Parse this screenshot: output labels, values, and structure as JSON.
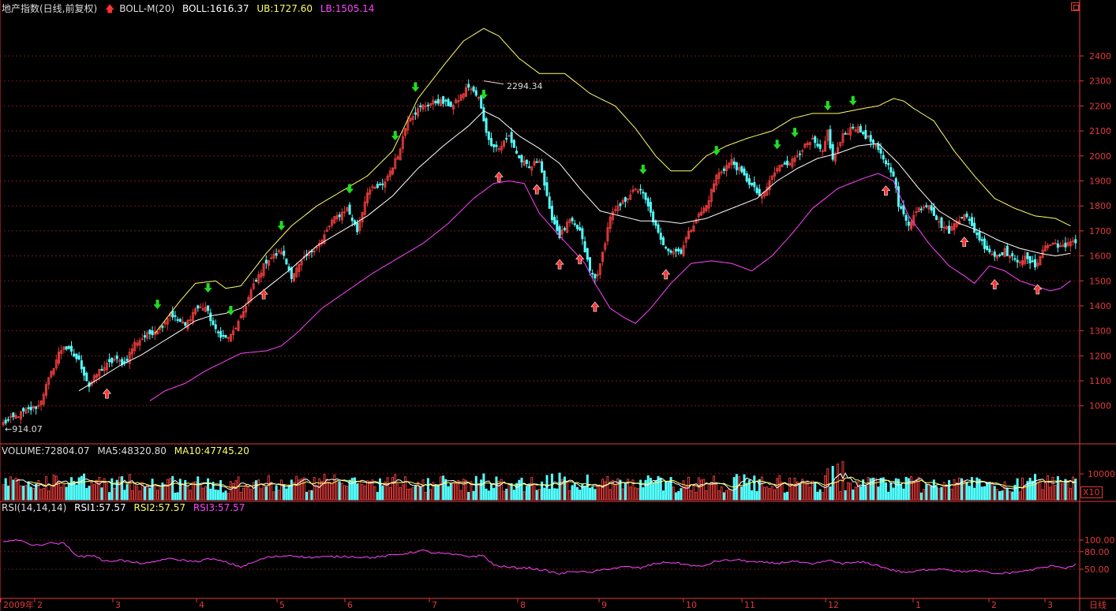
{
  "header": {
    "index_name": "地产指数(日线,前复权)",
    "indicator": "BOLL-M(20)",
    "boll_label": "BOLL:1616.37",
    "ub_label": "UB:1727.60",
    "lb_label": "LB:1505.14"
  },
  "volume_header": {
    "volume_label": "VOLUME:72804.07",
    "ma5_label": "MA5:48320.80",
    "ma10_label": "MA10:47745.20",
    "unit_label": "X10"
  },
  "rsi_header": {
    "name_label": "RSI(14,14,14)",
    "rsi1_label": "RSI1:57.57",
    "rsi2_label": "RSI2:57.57",
    "rsi3_label": "RSI3:57.57"
  },
  "colors": {
    "up": "#e23a3a",
    "down": "#54ffff",
    "boll_mid": "#ffffff",
    "boll_ub": "#ffff66",
    "boll_lb": "#ff44ff",
    "rsi": "#ff44ff",
    "axis": "#e23a3a",
    "buy_arrow": "#ff3333",
    "sell_arrow": "#22dd22"
  },
  "chart_data": [
    {
      "type": "candlestick",
      "price_ticks": [
        "2400",
        "2300",
        "2200",
        "2100",
        "2000",
        "1900",
        "1800",
        "1700",
        "1600",
        "1500",
        "1400",
        "1300",
        "1200",
        "1100",
        "1000"
      ],
      "ylim": [
        880,
        2500
      ],
      "annotations": {
        "high_label": "2294.34",
        "high_value": 2294.34,
        "low_label": "←914.07",
        "low_value": 914.07
      },
      "anchors": [
        [
          0,
          930
        ],
        [
          8,
          975
        ],
        [
          14,
          1000
        ],
        [
          22,
          1210
        ],
        [
          24,
          1240
        ],
        [
          30,
          1180
        ],
        [
          34,
          1080
        ],
        [
          38,
          1140
        ],
        [
          44,
          1185
        ],
        [
          48,
          1170
        ],
        [
          52,
          1250
        ],
        [
          58,
          1290
        ],
        [
          62,
          1310
        ],
        [
          66,
          1370
        ],
        [
          72,
          1320
        ],
        [
          76,
          1390
        ],
        [
          80,
          1395
        ],
        [
          84,
          1300
        ],
        [
          88,
          1270
        ],
        [
          90,
          1280
        ],
        [
          94,
          1350
        ],
        [
          98,
          1460
        ],
        [
          104,
          1580
        ],
        [
          110,
          1620
        ],
        [
          114,
          1520
        ],
        [
          120,
          1600
        ],
        [
          126,
          1660
        ],
        [
          130,
          1740
        ],
        [
          136,
          1790
        ],
        [
          140,
          1700
        ],
        [
          144,
          1860
        ],
        [
          150,
          1880
        ],
        [
          156,
          2000
        ],
        [
          160,
          2150
        ],
        [
          166,
          2200
        ],
        [
          172,
          2220
        ],
        [
          178,
          2200
        ],
        [
          184,
          2280
        ],
        [
          188,
          2230
        ],
        [
          192,
          2060
        ],
        [
          196,
          2030
        ],
        [
          200,
          2080
        ],
        [
          204,
          1990
        ],
        [
          208,
          1950
        ],
        [
          212,
          1990
        ],
        [
          216,
          1780
        ],
        [
          220,
          1680
        ],
        [
          224,
          1740
        ],
        [
          228,
          1700
        ],
        [
          232,
          1540
        ],
        [
          234,
          1510
        ],
        [
          236,
          1560
        ],
        [
          240,
          1760
        ],
        [
          244,
          1800
        ],
        [
          248,
          1850
        ],
        [
          252,
          1870
        ],
        [
          256,
          1770
        ],
        [
          260,
          1660
        ],
        [
          264,
          1620
        ],
        [
          268,
          1620
        ],
        [
          270,
          1670
        ],
        [
          274,
          1750
        ],
        [
          278,
          1800
        ],
        [
          282,
          1920
        ],
        [
          286,
          1960
        ],
        [
          288,
          1980
        ],
        [
          292,
          1930
        ],
        [
          296,
          1880
        ],
        [
          300,
          1830
        ],
        [
          304,
          1920
        ],
        [
          308,
          1970
        ],
        [
          312,
          1980
        ],
        [
          316,
          2030
        ],
        [
          320,
          2060
        ],
        [
          324,
          2010
        ],
        [
          326,
          2100
        ],
        [
          328,
          1980
        ],
        [
          332,
          2080
        ],
        [
          336,
          2120
        ],
        [
          340,
          2090
        ],
        [
          344,
          2050
        ],
        [
          348,
          1990
        ],
        [
          352,
          1930
        ],
        [
          354,
          1800
        ],
        [
          358,
          1730
        ],
        [
          362,
          1790
        ],
        [
          366,
          1810
        ],
        [
          370,
          1730
        ],
        [
          374,
          1700
        ],
        [
          378,
          1750
        ],
        [
          380,
          1770
        ],
        [
          384,
          1700
        ],
        [
          388,
          1640
        ],
        [
          392,
          1600
        ],
        [
          396,
          1620
        ],
        [
          400,
          1580
        ],
        [
          404,
          1590
        ],
        [
          408,
          1560
        ],
        [
          412,
          1640
        ],
        [
          416,
          1650
        ],
        [
          420,
          1630
        ],
        [
          422,
          1660
        ]
      ],
      "boll_ub_anchors": [
        [
          60,
          1290
        ],
        [
          70,
          1420
        ],
        [
          76,
          1490
        ],
        [
          84,
          1500
        ],
        [
          88,
          1470
        ],
        [
          94,
          1480
        ],
        [
          104,
          1610
        ],
        [
          114,
          1720
        ],
        [
          124,
          1800
        ],
        [
          134,
          1860
        ],
        [
          144,
          1920
        ],
        [
          154,
          2020
        ],
        [
          164,
          2230
        ],
        [
          174,
          2360
        ],
        [
          182,
          2460
        ],
        [
          190,
          2510
        ],
        [
          196,
          2480
        ],
        [
          204,
          2390
        ],
        [
          212,
          2330
        ],
        [
          222,
          2330
        ],
        [
          232,
          2250
        ],
        [
          242,
          2200
        ],
        [
          250,
          2110
        ],
        [
          258,
          2000
        ],
        [
          264,
          1940
        ],
        [
          272,
          1940
        ],
        [
          278,
          2000
        ],
        [
          286,
          2040
        ],
        [
          294,
          2070
        ],
        [
          304,
          2100
        ],
        [
          312,
          2150
        ],
        [
          320,
          2170
        ],
        [
          330,
          2170
        ],
        [
          340,
          2190
        ],
        [
          346,
          2200
        ],
        [
          352,
          2230
        ],
        [
          356,
          2220
        ],
        [
          360,
          2190
        ],
        [
          368,
          2140
        ],
        [
          376,
          2020
        ],
        [
          384,
          1920
        ],
        [
          392,
          1830
        ],
        [
          400,
          1790
        ],
        [
          408,
          1760
        ],
        [
          416,
          1750
        ],
        [
          422,
          1720
        ]
      ],
      "boll_mid_anchors": [
        [
          30,
          1060
        ],
        [
          38,
          1110
        ],
        [
          46,
          1160
        ],
        [
          54,
          1200
        ],
        [
          62,
          1250
        ],
        [
          70,
          1300
        ],
        [
          76,
          1340
        ],
        [
          82,
          1360
        ],
        [
          88,
          1370
        ],
        [
          94,
          1390
        ],
        [
          104,
          1470
        ],
        [
          114,
          1550
        ],
        [
          124,
          1640
        ],
        [
          134,
          1700
        ],
        [
          144,
          1760
        ],
        [
          154,
          1840
        ],
        [
          164,
          1950
        ],
        [
          174,
          2040
        ],
        [
          184,
          2120
        ],
        [
          190,
          2180
        ],
        [
          196,
          2150
        ],
        [
          204,
          2080
        ],
        [
          212,
          2030
        ],
        [
          220,
          1970
        ],
        [
          228,
          1870
        ],
        [
          236,
          1780
        ],
        [
          244,
          1760
        ],
        [
          252,
          1740
        ],
        [
          260,
          1740
        ],
        [
          268,
          1730
        ],
        [
          278,
          1750
        ],
        [
          288,
          1790
        ],
        [
          298,
          1830
        ],
        [
          306,
          1900
        ],
        [
          314,
          1950
        ],
        [
          322,
          1990
        ],
        [
          330,
          2010
        ],
        [
          338,
          2040
        ],
        [
          346,
          2050
        ],
        [
          354,
          1970
        ],
        [
          362,
          1870
        ],
        [
          370,
          1780
        ],
        [
          378,
          1730
        ],
        [
          386,
          1700
        ],
        [
          394,
          1660
        ],
        [
          402,
          1630
        ],
        [
          410,
          1610
        ],
        [
          416,
          1600
        ],
        [
          422,
          1610
        ]
      ],
      "boll_lb_anchors": [
        [
          58,
          1020
        ],
        [
          64,
          1060
        ],
        [
          72,
          1090
        ],
        [
          80,
          1140
        ],
        [
          88,
          1180
        ],
        [
          94,
          1210
        ],
        [
          104,
          1220
        ],
        [
          110,
          1240
        ],
        [
          116,
          1290
        ],
        [
          126,
          1390
        ],
        [
          136,
          1460
        ],
        [
          146,
          1530
        ],
        [
          156,
          1590
        ],
        [
          166,
          1650
        ],
        [
          176,
          1730
        ],
        [
          186,
          1830
        ],
        [
          194,
          1890
        ],
        [
          200,
          1900
        ],
        [
          206,
          1890
        ],
        [
          212,
          1770
        ],
        [
          220,
          1680
        ],
        [
          230,
          1570
        ],
        [
          234,
          1490
        ],
        [
          240,
          1390
        ],
        [
          246,
          1350
        ],
        [
          250,
          1330
        ],
        [
          256,
          1390
        ],
        [
          264,
          1490
        ],
        [
          272,
          1570
        ],
        [
          280,
          1580
        ],
        [
          288,
          1570
        ],
        [
          296,
          1540
        ],
        [
          304,
          1600
        ],
        [
          312,
          1690
        ],
        [
          320,
          1790
        ],
        [
          330,
          1870
        ],
        [
          340,
          1910
        ],
        [
          346,
          1930
        ],
        [
          352,
          1900
        ],
        [
          358,
          1760
        ],
        [
          366,
          1650
        ],
        [
          374,
          1560
        ],
        [
          380,
          1520
        ],
        [
          384,
          1490
        ],
        [
          390,
          1560
        ],
        [
          396,
          1540
        ],
        [
          402,
          1500
        ],
        [
          408,
          1480
        ],
        [
          414,
          1460
        ],
        [
          418,
          1470
        ],
        [
          422,
          1500
        ]
      ],
      "buy_signals": [
        41,
        103,
        196,
        211,
        220,
        228,
        234,
        262,
        349,
        380,
        392,
        409
      ],
      "sell_signals": [
        61,
        81,
        90,
        110,
        137,
        155,
        163,
        190,
        253,
        282,
        306,
        313,
        326,
        336
      ]
    },
    {
      "type": "bar",
      "name": "VOLUME",
      "ticks": [
        "10000"
      ],
      "ylim": [
        0,
        17000
      ]
    },
    {
      "type": "line",
      "name": "RSI",
      "ticks": [
        "100.00",
        "80.00",
        "50.00"
      ],
      "ylim": [
        40,
        104
      ],
      "anchors": [
        [
          0,
          99
        ],
        [
          8,
          99
        ],
        [
          12,
          90
        ],
        [
          18,
          95
        ],
        [
          24,
          94
        ],
        [
          30,
          71
        ],
        [
          36,
          74
        ],
        [
          40,
          63
        ],
        [
          46,
          66
        ],
        [
          52,
          61
        ],
        [
          58,
          60
        ],
        [
          64,
          68
        ],
        [
          70,
          66
        ],
        [
          76,
          63
        ],
        [
          82,
          68
        ],
        [
          88,
          62
        ],
        [
          94,
          54
        ],
        [
          104,
          70
        ],
        [
          114,
          74
        ],
        [
          120,
          70
        ],
        [
          126,
          71
        ],
        [
          136,
          72
        ],
        [
          146,
          70
        ],
        [
          156,
          75
        ],
        [
          166,
          82
        ],
        [
          170,
          78
        ],
        [
          176,
          76
        ],
        [
          184,
          72
        ],
        [
          190,
          73
        ],
        [
          194,
          57
        ],
        [
          200,
          53
        ],
        [
          208,
          52
        ],
        [
          214,
          48
        ],
        [
          220,
          42
        ],
        [
          226,
          47
        ],
        [
          232,
          44
        ],
        [
          238,
          50
        ],
        [
          246,
          54
        ],
        [
          252,
          52
        ],
        [
          258,
          60
        ],
        [
          264,
          62
        ],
        [
          270,
          58
        ],
        [
          276,
          54
        ],
        [
          282,
          64
        ],
        [
          290,
          66
        ],
        [
          298,
          62
        ],
        [
          306,
          60
        ],
        [
          312,
          64
        ],
        [
          320,
          58
        ],
        [
          326,
          65
        ],
        [
          332,
          60
        ],
        [
          340,
          62
        ],
        [
          346,
          56
        ],
        [
          352,
          48
        ],
        [
          358,
          44
        ],
        [
          364,
          49
        ],
        [
          372,
          51
        ],
        [
          378,
          46
        ],
        [
          386,
          47
        ],
        [
          392,
          42
        ],
        [
          398,
          44
        ],
        [
          404,
          47
        ],
        [
          410,
          52
        ],
        [
          416,
          56
        ],
        [
          420,
          52
        ],
        [
          424,
          58
        ]
      ]
    }
  ],
  "x_axis": {
    "labels": [
      {
        "text": "2009年",
        "x": 1
      },
      {
        "text": "2",
        "x": 44
      },
      {
        "text": "3",
        "x": 143
      },
      {
        "text": "4",
        "x": 249
      },
      {
        "text": "5",
        "x": 351
      },
      {
        "text": "6",
        "x": 437
      },
      {
        "text": "7",
        "x": 544
      },
      {
        "text": "8",
        "x": 656
      },
      {
        "text": "9",
        "x": 759
      },
      {
        "text": "10",
        "x": 866
      },
      {
        "text": "11",
        "x": 940
      },
      {
        "text": "12",
        "x": 1046
      },
      {
        "text": "1",
        "x": 1157
      },
      {
        "text": "2",
        "x": 1253
      },
      {
        "text": "3",
        "x": 1324
      }
    ],
    "period_label": "日线"
  }
}
